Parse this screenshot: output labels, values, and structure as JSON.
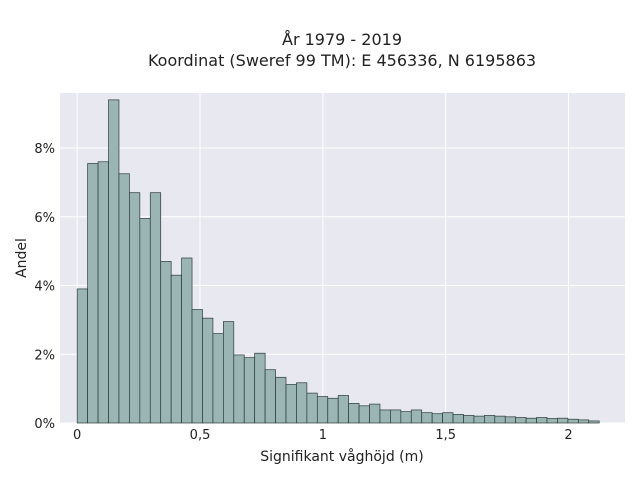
{
  "chart_data": {
    "type": "bar",
    "subtype": "histogram",
    "title_lines": [
      "År 1979 - 2019",
      "Koordinat (Sweref 99 TM): E 456336, N 6195863"
    ],
    "xlabel": "Signifikant våghöjd (m)",
    "ylabel": "Andel",
    "xlim": [
      -0.07,
      2.23
    ],
    "ylim": [
      0,
      9.6
    ],
    "x_ticks": [
      0,
      0.5,
      1,
      1.5,
      2
    ],
    "x_tick_labels": [
      "0",
      "0,5",
      "1",
      "1,5",
      "2"
    ],
    "y_ticks": [
      0,
      2,
      4,
      6,
      8
    ],
    "y_tick_labels": [
      "0%",
      "2%",
      "4%",
      "6%",
      "8%"
    ],
    "y_unit": "%",
    "bin_start": 0,
    "bin_width": 0.0425,
    "values": [
      3.9,
      7.55,
      7.6,
      9.4,
      7.25,
      6.7,
      5.95,
      6.7,
      4.7,
      4.3,
      4.8,
      3.3,
      3.05,
      2.6,
      2.95,
      1.98,
      1.9,
      2.03,
      1.55,
      1.33,
      1.12,
      1.17,
      0.87,
      0.77,
      0.72,
      0.8,
      0.57,
      0.5,
      0.55,
      0.38,
      0.38,
      0.33,
      0.38,
      0.3,
      0.27,
      0.3,
      0.25,
      0.22,
      0.2,
      0.22,
      0.2,
      0.18,
      0.16,
      0.14,
      0.16,
      0.13,
      0.14,
      0.11,
      0.09,
      0.06
    ],
    "grid": true,
    "colors": {
      "background": "#e8e8f1",
      "bar_fill": "#9bb5b4",
      "bar_stroke": "#2b3a3a",
      "grid": "#ffffff",
      "text": "#222222"
    }
  }
}
